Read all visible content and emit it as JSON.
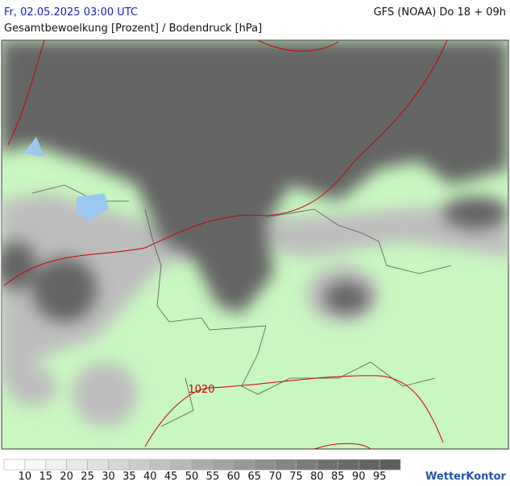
{
  "header": {
    "datetime": "Fr, 02.05.2025 03:00 UTC",
    "model": "GFS (NOAA) Do 18 + 09h",
    "subtitle": "Gesamtbewoelkung [Prozent] / Bodendruck [hPa]"
  },
  "map": {
    "isobar_label": "1020"
  },
  "legend": {
    "ticks": [
      10,
      15,
      20,
      25,
      30,
      35,
      40,
      45,
      50,
      55,
      60,
      65,
      70,
      75,
      80,
      85,
      90,
      95
    ],
    "colors": [
      "#ffffff",
      "#f8f8f8",
      "#f0f0f0",
      "#e8e8e8",
      "#e0e0e0",
      "#d6d6d6",
      "#cccccc",
      "#c2c2c2",
      "#b8b8b8",
      "#adadad",
      "#a3a3a3",
      "#999999",
      "#8f8f8f",
      "#858585",
      "#7b7b7b",
      "#727272",
      "#6a6a6a",
      "#646464",
      "#5e5e5e"
    ]
  },
  "logo": "WetterKontor"
}
